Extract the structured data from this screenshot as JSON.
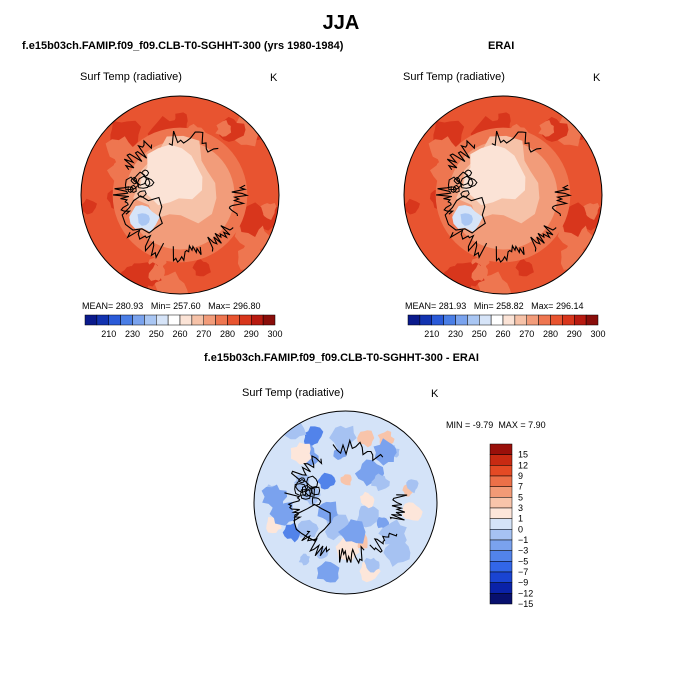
{
  "figure": {
    "title": "JJA"
  },
  "panels": [
    {
      "id": "model",
      "header": "f.e15b03ch.FAMIP.f09_f09.CLB-T0-SGHHT-300 (yrs 1980-1984)",
      "variable": "Surf Temp (radiative)",
      "units": "K",
      "stats": {
        "mean": "280.93",
        "min": "257.60",
        "max": "296.80"
      },
      "mean_label": "MEAN=",
      "min_label": "Min=",
      "max_label": "Max="
    },
    {
      "id": "obs",
      "header": "ERAI",
      "variable": "Surf Temp (radiative)",
      "units": "K",
      "stats": {
        "mean": "281.93",
        "min": "258.82",
        "max": "296.14"
      },
      "mean_label": "MEAN=",
      "min_label": "Min=",
      "max_label": "Max="
    },
    {
      "id": "diff",
      "header": "f.e15b03ch.FAMIP.f09_f09.CLB-T0-SGHHT-300 - ERAI",
      "variable": "Surf Temp (radiative)",
      "units": "K",
      "stats": {
        "min": "-9.79",
        "max": "7.90"
      },
      "min_label": "MIN =",
      "max_label": "MAX ="
    }
  ],
  "colors": {
    "abs_scale": [
      "#0a1a8c",
      "#1233b0",
      "#2a5ad8",
      "#4a7ee6",
      "#7aa3ee",
      "#a9c6f3",
      "#d6e4f8",
      "#ffffff",
      "#fbe3d6",
      "#f6c2a8",
      "#f29c7a",
      "#ee7650",
      "#e85430",
      "#d8361c",
      "#b81a10",
      "#8a0e0a"
    ],
    "diff_scale": [
      "#08106e",
      "#0a22a8",
      "#1a44d2",
      "#3266e8",
      "#5283ea",
      "#7aa2ee",
      "#a6c2f2",
      "#d4e3f8",
      "#fde6da",
      "#f8c4aa",
      "#f29a76",
      "#ec7048",
      "#e44a24",
      "#c82a12",
      "#9a100a"
    ],
    "coast": "#000000"
  },
  "chart_data": [
    {
      "type": "heatmap",
      "title": "f.e15b03ch.FAMIP.f09_f09.CLB-T0-SGHHT-300 (yrs 1980-1984)",
      "projection": "polar stereographic (north)",
      "variable": "Surf Temp (radiative)",
      "units": "K",
      "colorbar_levels": [
        210,
        230,
        250,
        260,
        270,
        280,
        290,
        300
      ],
      "stats": {
        "mean": 280.93,
        "min": 257.6,
        "max": 296.8
      }
    },
    {
      "type": "heatmap",
      "title": "ERAI",
      "projection": "polar stereographic (north)",
      "variable": "Surf Temp (radiative)",
      "units": "K",
      "colorbar_levels": [
        210,
        230,
        250,
        260,
        270,
        280,
        290,
        300
      ],
      "stats": {
        "mean": 281.93,
        "min": 258.82,
        "max": 296.14
      }
    },
    {
      "type": "heatmap",
      "title": "f.e15b03ch.FAMIP.f09_f09.CLB-T0-SGHHT-300 - ERAI",
      "projection": "polar stereographic (north)",
      "variable": "Surf Temp (radiative)",
      "units": "K",
      "colorbar_levels": [
        15,
        12,
        9,
        7,
        5,
        3,
        1,
        0,
        -1,
        -3,
        -5,
        -7,
        -9,
        -12,
        -15
      ],
      "stats": {
        "min": -9.79,
        "max": 7.9
      }
    }
  ]
}
